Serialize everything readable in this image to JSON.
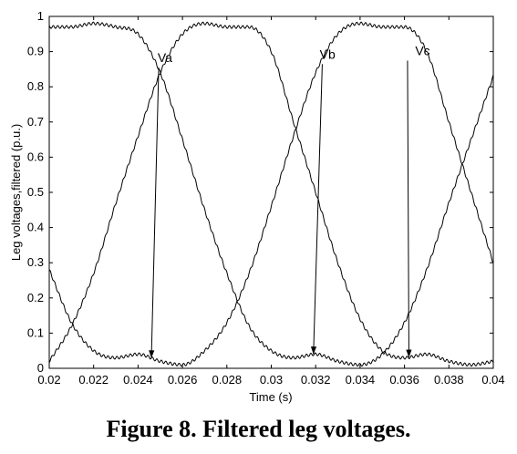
{
  "caption": "Figure 8. Filtered leg voltages.",
  "chart_data": {
    "type": "line",
    "title": "",
    "xlabel": "Time (s)",
    "ylabel": "Leg voltages,filtered (p.u.)",
    "xlim": [
      0.02,
      0.04
    ],
    "ylim": [
      0,
      1
    ],
    "xticks": [
      "0.02",
      "0.022",
      "0.024",
      "0.026",
      "0.028",
      "0.03",
      "0.032",
      "0.034",
      "0.036",
      "0.038",
      "0.04"
    ],
    "yticks": [
      "0",
      "0.1",
      "0.2",
      "0.3",
      "0.4",
      "0.5",
      "0.6",
      "0.7",
      "0.8",
      "0.9",
      "1"
    ],
    "grid": false,
    "legend": "none",
    "line_color": "#000000",
    "series": [
      {
        "name": "Va",
        "x": [
          0.02,
          0.021,
          0.022,
          0.023,
          0.024,
          0.025,
          0.026,
          0.027,
          0.028,
          0.029,
          0.03,
          0.031,
          0.032,
          0.033,
          0.034,
          0.035,
          0.036,
          0.037,
          0.038,
          0.039,
          0.04
        ],
        "y": [
          0.28,
          0.13,
          0.05,
          0.03,
          0.04,
          0.02,
          0.01,
          0.05,
          0.13,
          0.27,
          0.46,
          0.66,
          0.84,
          0.95,
          0.98,
          0.97,
          0.97,
          0.9,
          0.7,
          0.5,
          0.3
        ]
      },
      {
        "name": "Vb",
        "x": [
          0.02,
          0.021,
          0.022,
          0.023,
          0.024,
          0.025,
          0.026,
          0.027,
          0.028,
          0.029,
          0.03,
          0.031,
          0.032,
          0.033,
          0.034,
          0.035,
          0.036,
          0.037,
          0.038,
          0.039,
          0.04
        ],
        "y": [
          0.97,
          0.97,
          0.98,
          0.97,
          0.95,
          0.84,
          0.65,
          0.45,
          0.27,
          0.12,
          0.05,
          0.03,
          0.04,
          0.02,
          0.01,
          0.04,
          0.13,
          0.28,
          0.47,
          0.65,
          0.83
        ]
      },
      {
        "name": "Vc",
        "x": [
          0.02,
          0.021,
          0.022,
          0.023,
          0.024,
          0.025,
          0.026,
          0.027,
          0.028,
          0.029,
          0.03,
          0.031,
          0.032,
          0.033,
          0.034,
          0.035,
          0.036,
          0.037,
          0.038,
          0.039,
          0.04
        ],
        "y": [
          0.02,
          0.12,
          0.27,
          0.47,
          0.66,
          0.84,
          0.95,
          0.98,
          0.97,
          0.97,
          0.9,
          0.7,
          0.5,
          0.3,
          0.14,
          0.05,
          0.03,
          0.04,
          0.02,
          0.01,
          0.02
        ]
      }
    ],
    "annotations": [
      {
        "text": "Va",
        "series": "Va",
        "x": 0.0248,
        "y": 0.87
      },
      {
        "text": "Vb",
        "series": "Vb",
        "x": 0.0321,
        "y": 0.88
      },
      {
        "text": "Vc",
        "series": "Vc",
        "x": 0.0364,
        "y": 0.89
      }
    ]
  }
}
